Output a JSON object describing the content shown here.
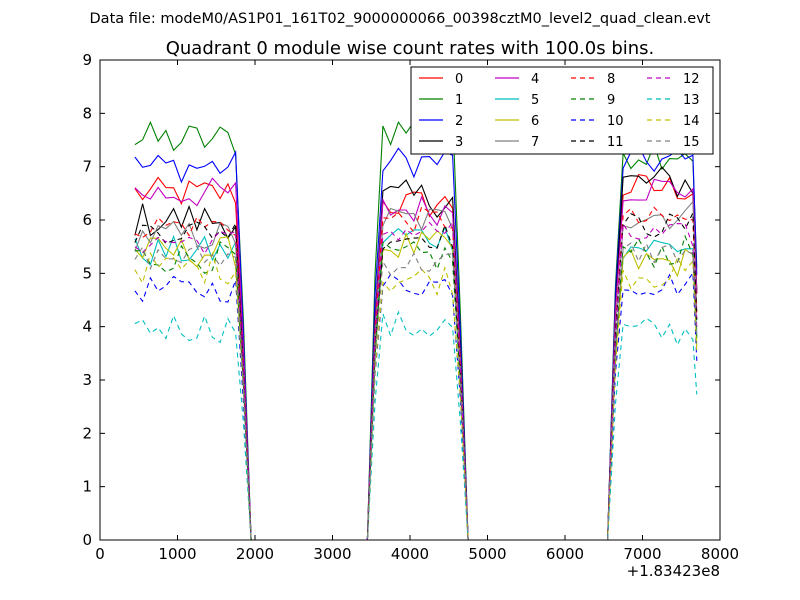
{
  "chart_data": {
    "type": "line",
    "suptitle": "Data file: modeM0/AS1P01_161T02_9000000066_00398cztM0_level2_quad_clean.evt",
    "title": "Quadrant 0 module wise count rates with 100.0s bins.",
    "xlabel": "",
    "ylabel": "",
    "x_offset_label": "+1.83423e8",
    "xlim": [
      0,
      8000
    ],
    "ylim": [
      0,
      9
    ],
    "x_ticks": [
      0,
      1000,
      2000,
      3000,
      4000,
      5000,
      6000,
      7000,
      8000
    ],
    "x_tick_labels": [
      "0",
      "1000",
      "2000",
      "3000",
      "4000",
      "5000",
      "6000",
      "7000",
      "8000"
    ],
    "y_ticks": [
      0,
      1,
      2,
      3,
      4,
      5,
      6,
      7,
      8,
      9
    ],
    "y_tick_labels": [
      "0",
      "1",
      "2",
      "3",
      "4",
      "5",
      "6",
      "7",
      "8",
      "9"
    ],
    "grid": false,
    "legend_position": "top-right",
    "legend_columns": 4,
    "segments": [
      {
        "start": 450,
        "count": 14
      },
      {
        "start": 3650,
        "count": 10
      },
      {
        "start": 6750,
        "count": 10
      }
    ],
    "series": [
      {
        "name": "0",
        "color": "#ff0000",
        "dashed": false,
        "levels": [
          6.5,
          6.3,
          6.6
        ],
        "amp": 0.3
      },
      {
        "name": "1",
        "color": "#008000",
        "dashed": false,
        "levels": [
          7.5,
          7.7,
          7.3
        ],
        "amp": 0.35
      },
      {
        "name": "2",
        "color": "#0000ff",
        "dashed": false,
        "levels": [
          7.0,
          7.1,
          7.1
        ],
        "amp": 0.3
      },
      {
        "name": "3",
        "color": "#000000",
        "dashed": false,
        "levels": [
          6.0,
          6.4,
          6.7
        ],
        "amp": 0.35
      },
      {
        "name": "4",
        "color": "#c000c0",
        "dashed": false,
        "levels": [
          6.5,
          6.2,
          6.6
        ],
        "amp": 0.3
      },
      {
        "name": "5",
        "color": "#00bfbf",
        "dashed": false,
        "levels": [
          5.4,
          5.7,
          5.5
        ],
        "amp": 0.3
      },
      {
        "name": "6",
        "color": "#bfbf00",
        "dashed": false,
        "levels": [
          5.4,
          5.5,
          5.2
        ],
        "amp": 0.3
      },
      {
        "name": "7",
        "color": "#808080",
        "dashed": false,
        "levels": [
          5.7,
          6.0,
          6.1
        ],
        "amp": 0.3
      },
      {
        "name": "8",
        "color": "#ff0000",
        "dashed": true,
        "levels": [
          5.9,
          6.0,
          6.0
        ],
        "amp": 0.25
      },
      {
        "name": "9",
        "color": "#008000",
        "dashed": true,
        "levels": [
          5.3,
          5.3,
          5.4
        ],
        "amp": 0.3
      },
      {
        "name": "10",
        "color": "#0000ff",
        "dashed": true,
        "levels": [
          4.7,
          4.8,
          4.8
        ],
        "amp": 0.25
      },
      {
        "name": "11",
        "color": "#000000",
        "dashed": true,
        "levels": [
          5.8,
          5.7,
          5.9
        ],
        "amp": 0.25
      },
      {
        "name": "12",
        "color": "#c000c0",
        "dashed": true,
        "levels": [
          5.6,
          5.8,
          5.7
        ],
        "amp": 0.25
      },
      {
        "name": "13",
        "color": "#00bfbf",
        "dashed": true,
        "levels": [
          4.0,
          4.0,
          3.9
        ],
        "amp": 0.3
      },
      {
        "name": "14",
        "color": "#bfbf00",
        "dashed": true,
        "levels": [
          5.1,
          4.9,
          5.0
        ],
        "amp": 0.3
      },
      {
        "name": "15",
        "color": "#808080",
        "dashed": true,
        "levels": [
          5.3,
          5.2,
          5.4
        ],
        "amp": 0.25
      }
    ]
  }
}
